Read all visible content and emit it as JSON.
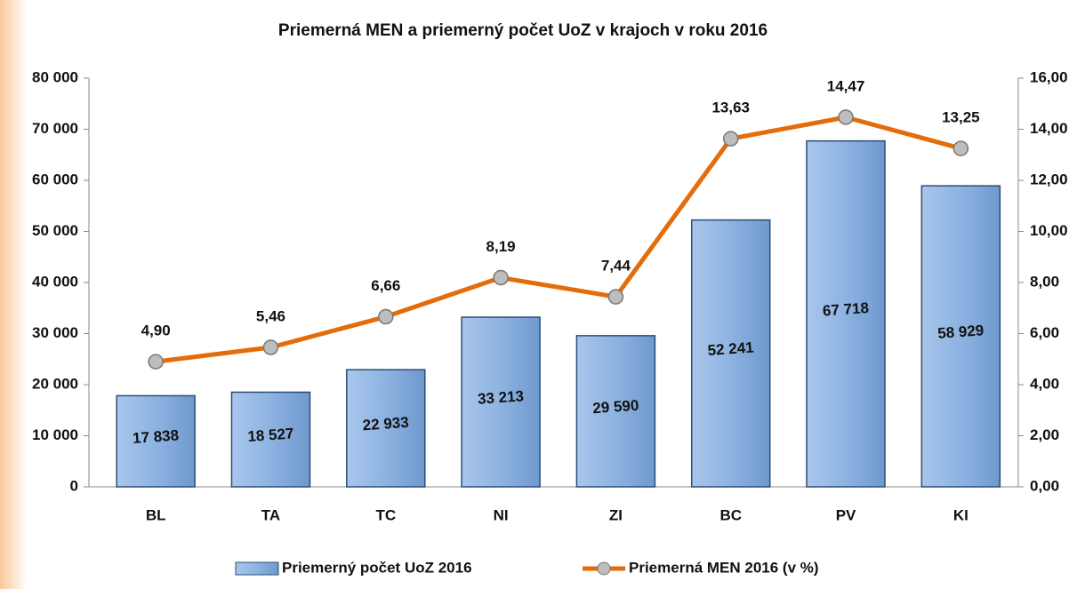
{
  "chart_data": {
    "type": "bar",
    "title": "Priemerná MEN a priemerný  počet UoZ   v krajoch v roku 2016",
    "categories": [
      "BL",
      "TA",
      "TC",
      "NI",
      "ZI",
      "BC",
      "PV",
      "KI"
    ],
    "series": [
      {
        "name": "Priemerný počet UoZ 2016",
        "type": "bar",
        "color": "#8db3e2",
        "values": [
          17838,
          18527,
          22933,
          33213,
          29590,
          52241,
          67718,
          58929
        ],
        "value_labels": [
          "17 838",
          "18 527",
          "22 933",
          "33 213",
          "29 590",
          "52 241",
          "67 718",
          "58 929"
        ]
      },
      {
        "name": "Priemerná MEN 2016 (v %)",
        "type": "line",
        "axis": "y2",
        "color": "#e46c0a",
        "values": [
          4.9,
          5.46,
          6.66,
          8.19,
          7.44,
          13.63,
          14.47,
          13.25
        ],
        "value_labels": [
          "4,90",
          "5,46",
          "6,66",
          "8,19",
          "7,44",
          "13,63",
          "14,47",
          "13,25"
        ]
      }
    ],
    "ylim": [
      0,
      80000
    ],
    "yticks": [
      0,
      {
        "value": 10000,
        "label": "10 000"
      },
      {
        "value": 20000,
        "label": "20 000"
      },
      {
        "value": 30000,
        "label": "30 000"
      },
      {
        "value": 40000,
        "label": "40 000"
      },
      {
        "value": 50000,
        "label": "50 000"
      },
      {
        "value": 60000,
        "label": "60 000"
      },
      {
        "value": 70000,
        "label": "70 000"
      },
      {
        "value": 80000,
        "label": "80 000"
      }
    ],
    "y2lim": [
      0,
      16
    ],
    "y2ticks": [
      {
        "value": 0,
        "label": "0,00"
      },
      {
        "value": 2,
        "label": "2,00"
      },
      {
        "value": 4,
        "label": "4,00"
      },
      {
        "value": 6,
        "label": "6,00"
      },
      {
        "value": 8,
        "label": "8,00"
      },
      {
        "value": 10,
        "label": "10,00"
      },
      {
        "value": 12,
        "label": "12,00"
      },
      {
        "value": 14,
        "label": "14,00"
      },
      {
        "value": 16,
        "label": "16,00"
      }
    ],
    "legend": "bottom"
  }
}
